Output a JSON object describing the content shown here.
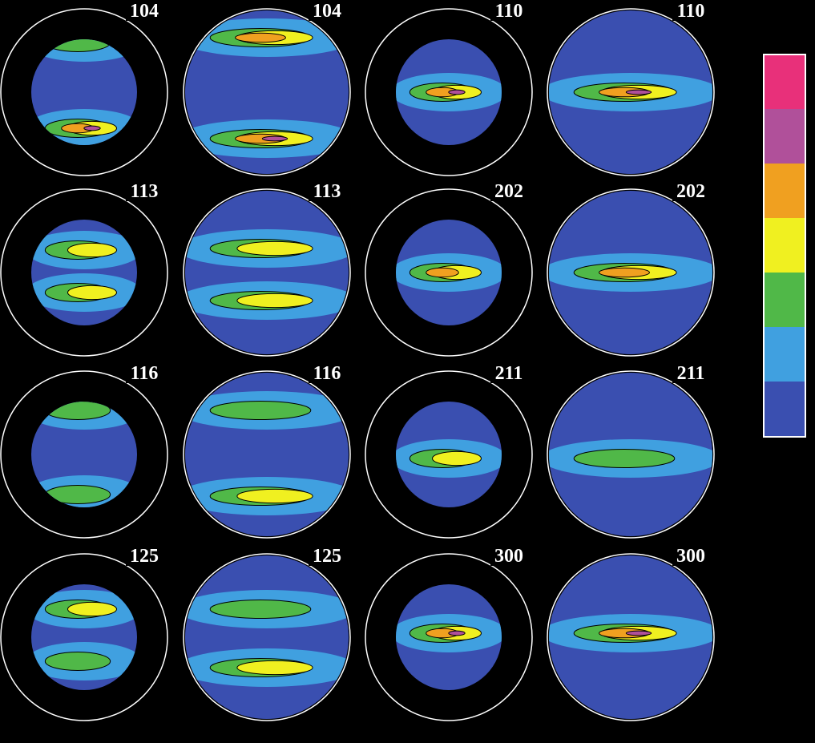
{
  "panels": [
    {
      "label": "104"
    },
    {
      "label": "104"
    },
    {
      "label": "110"
    },
    {
      "label": "110"
    },
    {
      "label": "113"
    },
    {
      "label": "113"
    },
    {
      "label": "202"
    },
    {
      "label": "202"
    },
    {
      "label": "116"
    },
    {
      "label": "116"
    },
    {
      "label": "211"
    },
    {
      "label": "211"
    },
    {
      "label": "125"
    },
    {
      "label": "125"
    },
    {
      "label": "300"
    },
    {
      "label": "300"
    }
  ]
}
